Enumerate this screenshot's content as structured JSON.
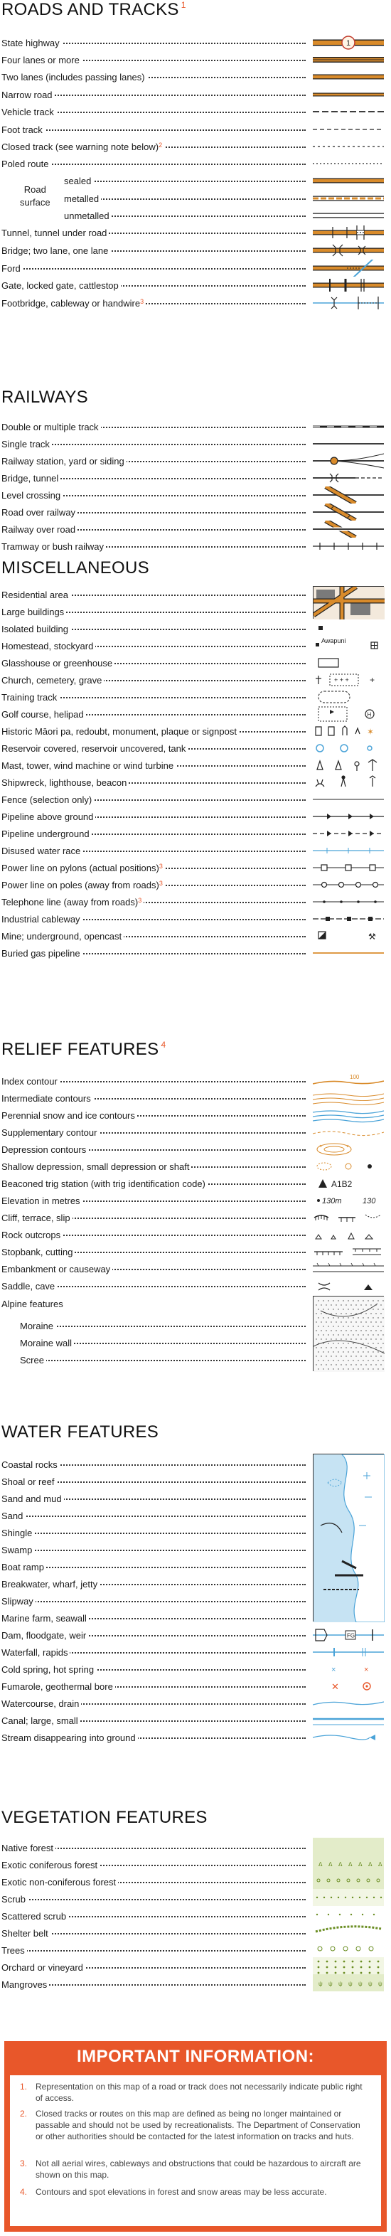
{
  "colors": {
    "accent": "#e8572a",
    "road_orange": "#d98b2b",
    "water_blue": "#4aa3d8",
    "veg_green": "#e3ecc9"
  },
  "roads": {
    "title": "ROADS AND TRACKS",
    "title_note": "1",
    "items": [
      {
        "label": "State highway",
        "badge": "1"
      },
      {
        "label": "Four lanes or more"
      },
      {
        "label": "Two lanes (includes passing lanes)"
      },
      {
        "label": "Narrow road"
      },
      {
        "label": "Vehicle track"
      },
      {
        "label": "Foot track"
      },
      {
        "label": "Closed track (see warning note below)",
        "note": "2"
      },
      {
        "label": "Poled route"
      },
      {
        "label": "Tunnel, tunnel under road"
      },
      {
        "label": "Bridge; two lane, one lane"
      },
      {
        "label": "Ford"
      },
      {
        "label": "Gate, locked gate, cattlestop"
      },
      {
        "label": "Footbridge, cableway or handwire",
        "note": "3"
      }
    ],
    "surface": {
      "group_label_1": "Road",
      "group_label_2": "surface",
      "items": [
        "sealed",
        "metalled",
        "unmetalled"
      ]
    }
  },
  "railways": {
    "title": "RAILWAYS",
    "items": [
      {
        "label": "Double or multiple track"
      },
      {
        "label": "Single track"
      },
      {
        "label": "Railway station, yard or siding"
      },
      {
        "label": "Bridge, tunnel"
      },
      {
        "label": "Level crossing"
      },
      {
        "label": "Road over railway"
      },
      {
        "label": "Railway over road"
      },
      {
        "label": "Tramway or bush railway"
      }
    ]
  },
  "misc": {
    "title": "MISCELLANEOUS",
    "homestead_name": "Awapuni",
    "items": [
      {
        "label": "Residential area"
      },
      {
        "label": "Large buildings"
      },
      {
        "label": "Isolated building"
      },
      {
        "label": "Homestead, stockyard"
      },
      {
        "label": "Glasshouse or greenhouse"
      },
      {
        "label": "Church, cemetery, grave"
      },
      {
        "label": "Training track"
      },
      {
        "label": "Golf course, helipad"
      },
      {
        "label": "Historic Māori pa, redoubt, monument, plaque or signpost"
      },
      {
        "label": "Reservoir covered, reservoir uncovered, tank"
      },
      {
        "label": "Mast, tower, wind machine or wind turbine"
      },
      {
        "label": "Shipwreck, lighthouse, beacon"
      },
      {
        "label": "Fence (selection only)"
      },
      {
        "label": "Pipeline above ground"
      },
      {
        "label": "Pipeline underground"
      },
      {
        "label": "Disused water race"
      },
      {
        "label": "Power line on pylons (actual positions)",
        "note": "3"
      },
      {
        "label": "Power line on poles (away from roads)",
        "note": "3"
      },
      {
        "label": "Telephone line (away from roads)",
        "note": "3"
      },
      {
        "label": "Industrial cableway"
      },
      {
        "label": "Mine; underground, opencast"
      },
      {
        "label": "Buried gas pipeline"
      }
    ]
  },
  "relief": {
    "title": "RELIEF FEATURES",
    "title_note": "4",
    "index_value": "100",
    "trig_code": "A1B2",
    "elev_1": "130m",
    "elev_2": "130",
    "items": [
      {
        "label": "Index contour"
      },
      {
        "label": "Intermediate contours"
      },
      {
        "label": "Perennial snow and ice contours"
      },
      {
        "label": "Supplementary contour"
      },
      {
        "label": "Depression contours"
      },
      {
        "label": "Shallow depression, small depression or shaft"
      },
      {
        "label": "Beaconed trig station (with trig identification code)"
      },
      {
        "label": "Elevation in metres"
      },
      {
        "label": "Cliff, terrace, slip"
      },
      {
        "label": "Rock outcrops"
      },
      {
        "label": "Stopbank, cutting"
      },
      {
        "label": "Embankment or causeway"
      },
      {
        "label": "Saddle, cave"
      }
    ],
    "alpine": {
      "label": "Alpine features",
      "items": [
        "Moraine",
        "Moraine wall",
        "Scree"
      ]
    }
  },
  "water": {
    "title": "WATER FEATURES",
    "floodgate_code": "FG",
    "items": [
      {
        "label": "Coastal rocks"
      },
      {
        "label": "Shoal or reef"
      },
      {
        "label": "Sand and mud"
      },
      {
        "label": "Sand"
      },
      {
        "label": "Shingle"
      },
      {
        "label": "Swamp"
      },
      {
        "label": "Boat ramp"
      },
      {
        "label": "Breakwater, wharf, jetty"
      },
      {
        "label": "Slipway"
      },
      {
        "label": "Marine farm, seawall"
      },
      {
        "label": "Dam, floodgate, weir"
      },
      {
        "label": "Waterfall, rapids"
      },
      {
        "label": "Cold spring, hot spring"
      },
      {
        "label": "Fumarole, geothermal bore"
      },
      {
        "label": "Watercourse, drain"
      },
      {
        "label": "Canal; large, small"
      },
      {
        "label": "Stream disappearing into ground"
      }
    ]
  },
  "vegetation": {
    "title": "VEGETATION FEATURES",
    "items": [
      {
        "label": "Native forest"
      },
      {
        "label": "Exotic coniferous forest"
      },
      {
        "label": "Exotic non-coniferous forest"
      },
      {
        "label": "Scrub"
      },
      {
        "label": "Scattered scrub"
      },
      {
        "label": "Shelter belt"
      },
      {
        "label": "Trees"
      },
      {
        "label": "Orchard or vineyard"
      },
      {
        "label": "Mangroves"
      }
    ]
  },
  "important": {
    "title": "IMPORTANT INFORMATION:",
    "notes": [
      {
        "num": "1.",
        "text": "Representation on this map of a road or track does not necessarily indicate public right of access."
      },
      {
        "num": "2.",
        "text": "Closed tracks or routes on this map are defined as being no longer maintained or passable and should not be used by recreationalists. The Department of Conservation or other authorities should be contacted for the latest information on tracks and huts."
      },
      {
        "num": "3.",
        "text": "Not all aerial wires, cableways and obstructions that could be hazardous to aircraft are shown on this map."
      },
      {
        "num": "4.",
        "text": "Contours and spot elevations in forest and snow areas may be less accurate."
      }
    ]
  }
}
